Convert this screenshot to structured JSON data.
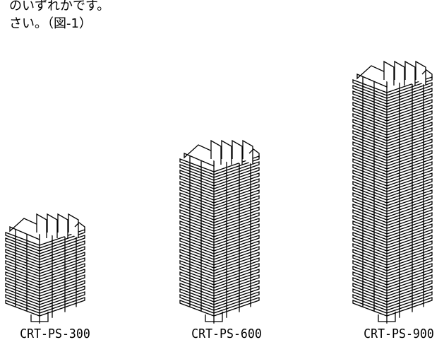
{
  "intro": {
    "line1": "のいずれかです。",
    "line2": "さい。（図-1）"
  },
  "models": [
    {
      "label": "CRT-PS-300",
      "fins": 13
    },
    {
      "label": "CRT-PS-600",
      "fins": 26
    },
    {
      "label": "CRT-PS-900",
      "fins": 40
    }
  ],
  "colors": {
    "line": "#000000",
    "background": "#ffffff"
  }
}
